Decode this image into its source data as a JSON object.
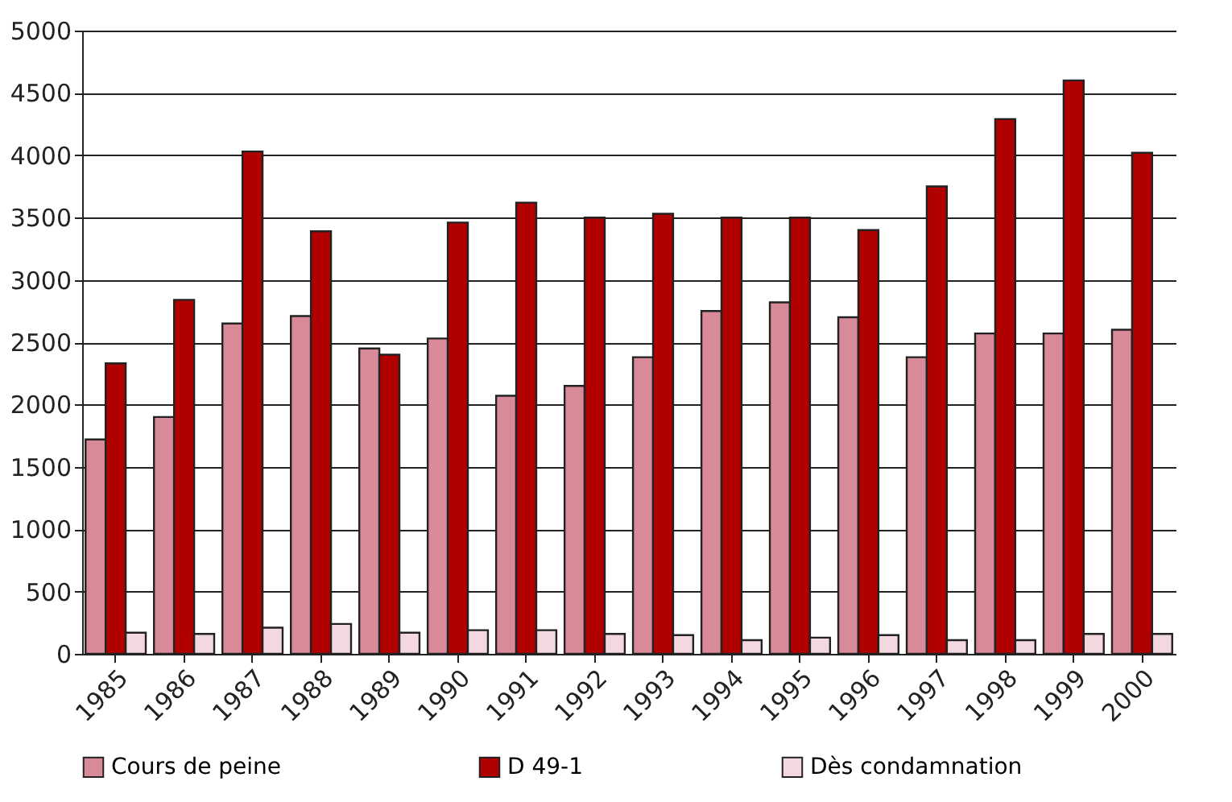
{
  "chart_data": {
    "type": "bar",
    "categories": [
      "1985",
      "1986",
      "1987",
      "1988",
      "1989",
      "1990",
      "1991",
      "1992",
      "1993",
      "1994",
      "1995",
      "1996",
      "1997",
      "1998",
      "1999",
      "2000"
    ],
    "series": [
      {
        "name": "Cours de peine",
        "color": "#d98a98",
        "values": [
          1720,
          1900,
          2650,
          2710,
          2450,
          2530,
          2070,
          2150,
          2380,
          2750,
          2820,
          2700,
          2380,
          2570,
          2570,
          2600
        ]
      },
      {
        "name": "D 49-1",
        "color": "#b00000",
        "values": [
          2330,
          2840,
          4030,
          3390,
          2400,
          3460,
          3620,
          3500,
          3530,
          3500,
          3500,
          3400,
          3750,
          4290,
          4600,
          4020
        ]
      },
      {
        "name": "Dès condamnation",
        "color": "#f4d8df",
        "values": [
          170,
          160,
          210,
          240,
          170,
          190,
          190,
          160,
          150,
          110,
          130,
          150,
          110,
          110,
          160,
          160
        ]
      }
    ],
    "ylim": [
      0,
      5000
    ],
    "yticks": [
      0,
      500,
      1000,
      1500,
      2000,
      2500,
      3000,
      3500,
      4000,
      4500,
      5000
    ],
    "grid": "y",
    "legend": "bottom"
  }
}
